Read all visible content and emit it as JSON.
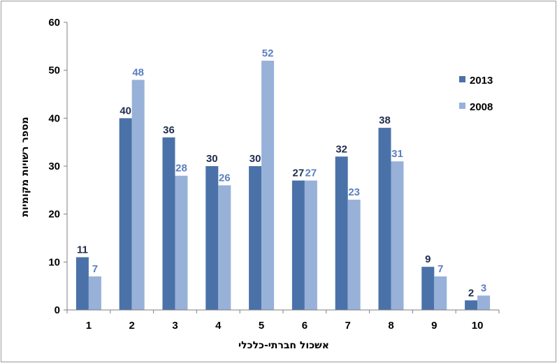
{
  "chart_data": {
    "type": "bar",
    "title": "",
    "xlabel": "אשכול חברתי-כלכלי",
    "ylabel": "מספר רשויות מקומיות",
    "categories": [
      "1",
      "2",
      "3",
      "4",
      "5",
      "6",
      "7",
      "8",
      "9",
      "10"
    ],
    "series": [
      {
        "name": "2013",
        "values": [
          11,
          40,
          36,
          30,
          30,
          27,
          32,
          38,
          9,
          2
        ],
        "color": "#4a72a8",
        "label_color": "#1f2d4d"
      },
      {
        "name": "2008",
        "values": [
          7,
          48,
          28,
          26,
          52,
          27,
          23,
          31,
          7,
          3
        ],
        "color": "#97b1d9",
        "label_color": "#5b7fbf"
      }
    ],
    "ylim": [
      0,
      60
    ],
    "yticks": [
      0,
      10,
      20,
      30,
      40,
      50,
      60
    ],
    "grid": false,
    "legend_position": "right"
  }
}
